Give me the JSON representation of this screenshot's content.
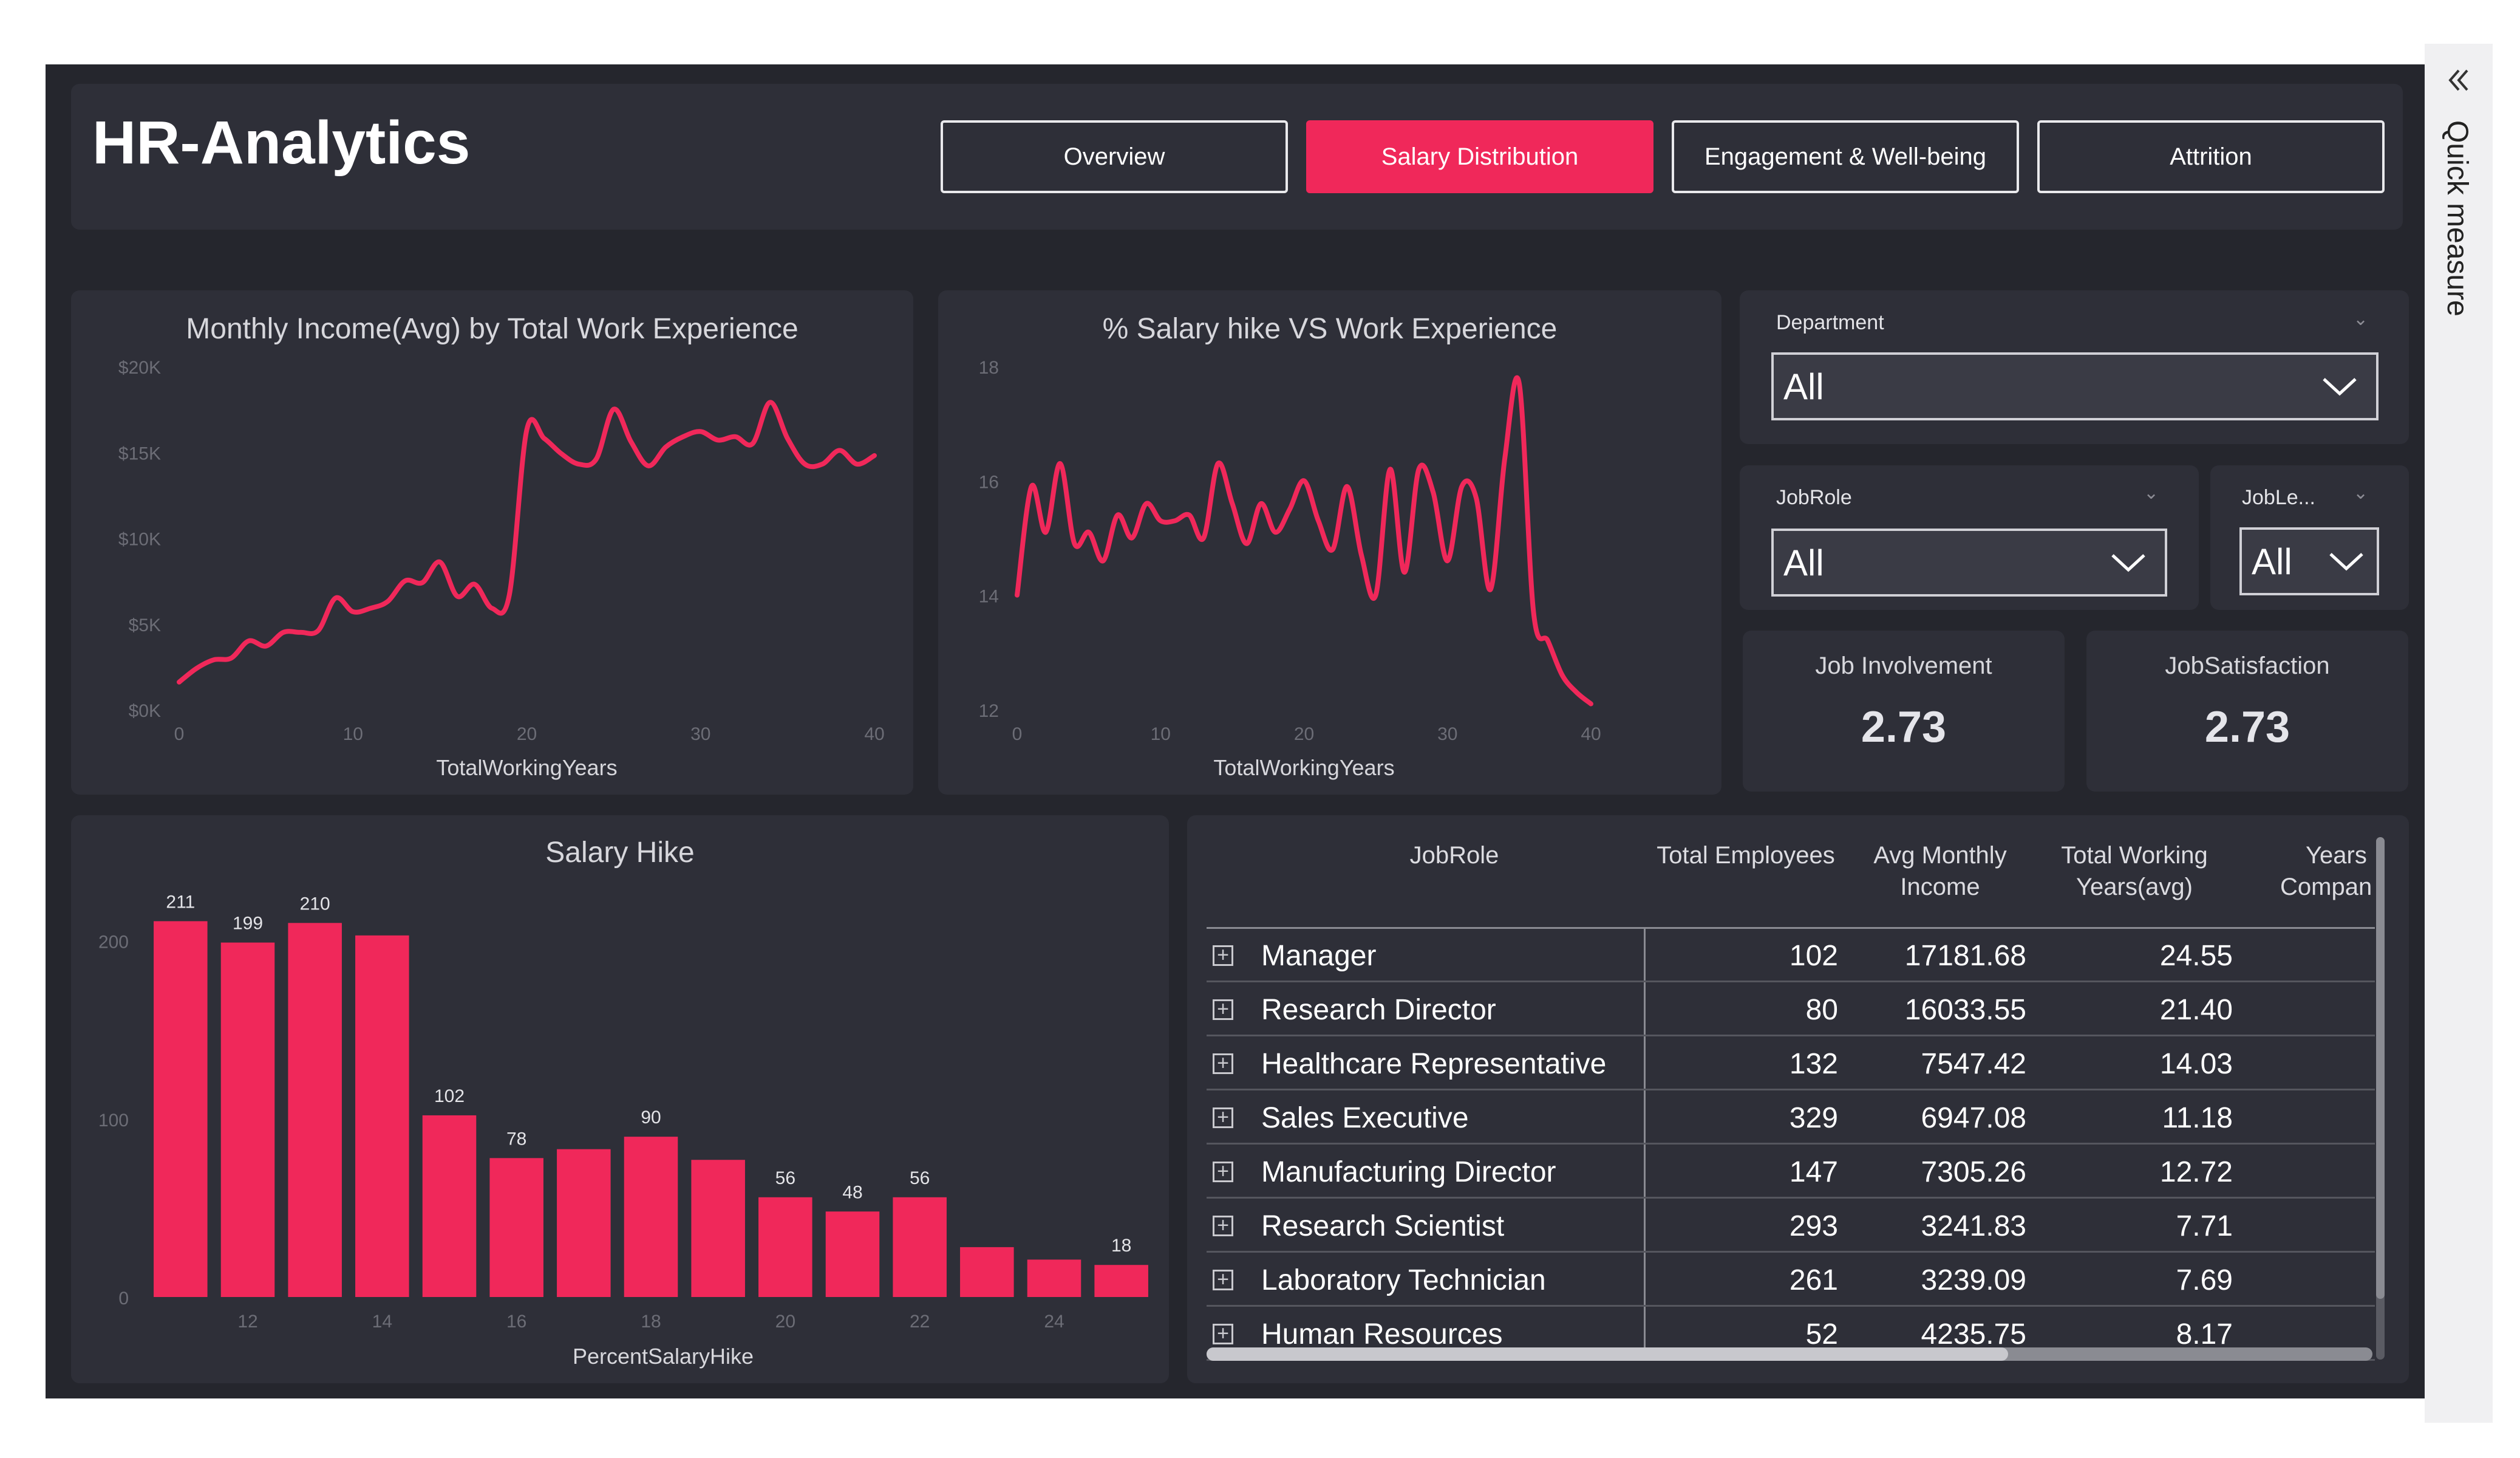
{
  "header": {
    "title": "HR-Analytics",
    "tabs": [
      {
        "label": "Overview"
      },
      {
        "label": "Salary Distribution"
      },
      {
        "label": "Engagement & Well-being"
      },
      {
        "label": "Attrition"
      }
    ]
  },
  "quick_measure": {
    "label": "Quick measure",
    "icon": "double-chevron-left-icon"
  },
  "colors": {
    "accent": "#f0285a",
    "background": "#25262d",
    "panel": "#2e2f38"
  },
  "chart_income": {
    "title": "Monthly Income(Avg) by Total Work Experience",
    "xlabel": "TotalWorkingYears",
    "yticks": [
      "$0K",
      "$5K",
      "$10K",
      "$15K",
      "$20K"
    ],
    "xticks": [
      "0",
      "10",
      "20",
      "30",
      "40"
    ]
  },
  "chart_hike": {
    "title": "% Salary hike VS Work Experience",
    "xlabel": "TotalWorkingYears",
    "yticks": [
      "12",
      "14",
      "16",
      "18"
    ],
    "xticks": [
      "0",
      "10",
      "20",
      "30",
      "40"
    ]
  },
  "chart_bar": {
    "title": "Salary Hike",
    "xlabel": "PercentSalaryHike",
    "yticks": [
      "0",
      "100",
      "200"
    ],
    "xticks": [
      "12",
      "14",
      "16",
      "18",
      "20",
      "22",
      "24"
    ]
  },
  "slicers": {
    "department": {
      "label": "Department",
      "value": "All"
    },
    "jobrole": {
      "label": "JobRole",
      "value": "All"
    },
    "joblevel": {
      "label": "JobLe...",
      "value": "All"
    }
  },
  "cards": {
    "job_involvement": {
      "label": "Job Involvement",
      "value": "2.73"
    },
    "job_satisfaction": {
      "label": "JobSatisfaction",
      "value": "2.73"
    }
  },
  "table": {
    "headers": [
      "JobRole",
      "Total Employees",
      "Avg Monthly Income",
      "Total Working Years(avg)",
      "Years ... Compan..."
    ],
    "header_lines": {
      "c0": [
        "JobRole"
      ],
      "c1": [
        "Total Employees"
      ],
      "c2": [
        "Avg Monthly",
        "Income"
      ],
      "c3": [
        "Total Working",
        "Years(avg)"
      ],
      "c4": [
        "Years",
        "Compan"
      ]
    },
    "rows": [
      {
        "role": "Manager",
        "employees": "102",
        "income": "17181.68",
        "years": "24.55"
      },
      {
        "role": "Research Director",
        "employees": "80",
        "income": "16033.55",
        "years": "21.40"
      },
      {
        "role": "Healthcare Representative",
        "employees": "132",
        "income": "7547.42",
        "years": "14.03"
      },
      {
        "role": "Sales Executive",
        "employees": "329",
        "income": "6947.08",
        "years": "11.18"
      },
      {
        "role": "Manufacturing Director",
        "employees": "147",
        "income": "7305.26",
        "years": "12.72"
      },
      {
        "role": "Research Scientist",
        "employees": "293",
        "income": "3241.83",
        "years": "7.71"
      },
      {
        "role": "Laboratory Technician",
        "employees": "261",
        "income": "3239.09",
        "years": "7.69"
      },
      {
        "role": "Human Resources",
        "employees": "52",
        "income": "4235.75",
        "years": "8.17"
      }
    ]
  },
  "chart_data": [
    {
      "type": "line",
      "title": "Monthly Income(Avg) by Total Work Experience",
      "xlabel": "TotalWorkingYears",
      "ylabel": "",
      "xlim": [
        0,
        40
      ],
      "ylim": [
        0,
        20000
      ],
      "x": [
        0,
        1,
        2,
        3,
        4,
        5,
        6,
        7,
        8,
        9,
        10,
        11,
        12,
        13,
        14,
        15,
        16,
        17,
        18,
        19,
        20,
        21,
        22,
        23,
        24,
        25,
        26,
        27,
        28,
        29,
        30,
        31,
        32,
        33,
        34,
        35,
        36,
        37,
        38,
        39,
        40
      ],
      "y": [
        1600,
        2400,
        2900,
        3000,
        4000,
        3700,
        4500,
        4500,
        4600,
        6500,
        5700,
        5900,
        6300,
        7500,
        7400,
        8600,
        6600,
        7300,
        5900,
        6700,
        16300,
        15800,
        14900,
        14300,
        14600,
        17500,
        15600,
        14200,
        15300,
        15900,
        16200,
        15700,
        15900,
        15500,
        17900,
        15800,
        14300,
        14300,
        15100,
        14300,
        14800
      ]
    },
    {
      "type": "line",
      "title": "% Salary hike VS Work Experience",
      "xlabel": "TotalWorkingYears",
      "ylabel": "",
      "xlim": [
        0,
        40
      ],
      "ylim": [
        12,
        18
      ],
      "x": [
        0,
        1,
        2,
        3,
        4,
        5,
        6,
        7,
        8,
        9,
        10,
        11,
        12,
        13,
        14,
        15,
        16,
        17,
        18,
        19,
        20,
        21,
        22,
        23,
        24,
        25,
        26,
        27,
        28,
        29,
        30,
        31,
        32,
        33,
        34,
        35,
        36,
        37,
        38,
        39,
        40
      ],
      "y": [
        14.0,
        15.9,
        15.1,
        16.3,
        14.9,
        15.1,
        14.6,
        15.4,
        15.0,
        15.6,
        15.3,
        15.3,
        15.4,
        15.0,
        16.3,
        15.6,
        14.9,
        15.6,
        15.1,
        15.5,
        16.0,
        15.3,
        14.8,
        15.9,
        14.7,
        14.0,
        16.2,
        14.4,
        16.2,
        15.8,
        14.6,
        15.9,
        15.7,
        14.1,
        16.4,
        17.7,
        13.7,
        13.2,
        12.6,
        12.3,
        12.1
      ]
    },
    {
      "type": "bar",
      "title": "Salary Hike",
      "xlabel": "PercentSalaryHike",
      "ylabel": "",
      "ylim": [
        0,
        250
      ],
      "categories": [
        11,
        12,
        13,
        14,
        15,
        16,
        17,
        18,
        19,
        20,
        21,
        22,
        23,
        24,
        25
      ],
      "values": [
        211,
        199,
        210,
        203,
        102,
        78,
        83,
        90,
        77,
        56,
        48,
        56,
        28,
        21,
        18
      ],
      "labels_shown": [
        "211",
        "199",
        "210",
        "",
        "102",
        "78",
        "",
        "90",
        "",
        "56",
        "48",
        "56",
        "",
        "",
        "18"
      ]
    }
  ]
}
